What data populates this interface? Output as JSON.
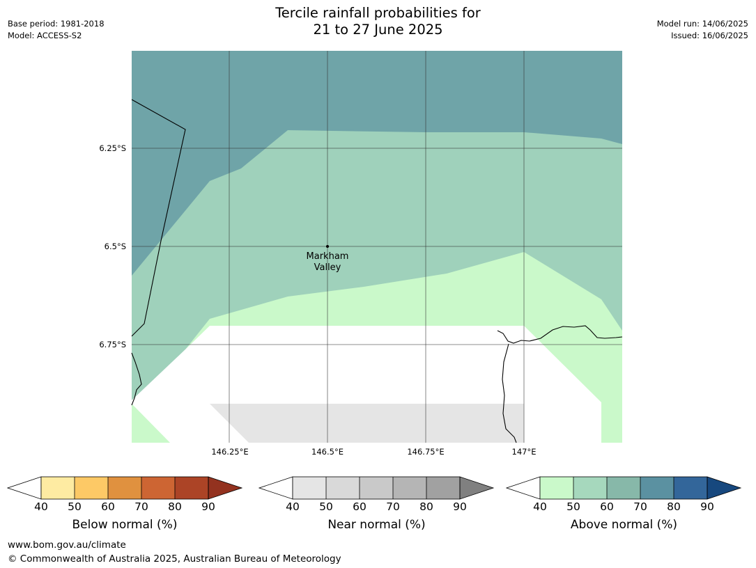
{
  "header": {
    "base_period": "Base period: 1981-2018",
    "model": "Model: ACCESS-S2",
    "model_run": "Model run: 14/06/2025",
    "issued": "Issued: 16/06/2025",
    "title_line1": "Tercile rainfall probabilities for",
    "title_line2": "21 to 27 June 2025"
  },
  "map": {
    "lat_labels": [
      "6.25°S",
      "6.5°S",
      "6.75°S"
    ],
    "lon_labels": [
      "146.25°E",
      "146.5°E",
      "146.75°E",
      "147°E"
    ],
    "place": {
      "name_line1": "Markham",
      "name_line2": "Valley"
    },
    "category_colors": {
      "above_60_70": "#6fa4a8",
      "above_50_60": "#9fd1bb",
      "above_40_50": "#caf9ca",
      "near_40_50": "#e5e5e5",
      "no_signal": "#ffffff"
    }
  },
  "colorbars": [
    {
      "title": "Below normal (%)",
      "ticks": [
        "40",
        "50",
        "60",
        "70",
        "80",
        "90"
      ],
      "colors": [
        "#feeba2",
        "#fdc966",
        "#e0913f",
        "#cd6533",
        "#ac4426",
        "#93321f"
      ]
    },
    {
      "title": "Near normal (%)",
      "ticks": [
        "40",
        "50",
        "60",
        "70",
        "80",
        "90"
      ],
      "colors": [
        "#e5e5e5",
        "#d9d9d9",
        "#c9c9c9",
        "#b5b5b5",
        "#a1a1a1",
        "#808080"
      ]
    },
    {
      "title": "Above normal (%)",
      "ticks": [
        "40",
        "50",
        "60",
        "70",
        "80",
        "90"
      ],
      "colors": [
        "#caf9ca",
        "#a6d8bd",
        "#87b8a9",
        "#5b91a1",
        "#33669a",
        "#17487e"
      ]
    }
  ],
  "footer": {
    "url": "www.bom.gov.au/climate",
    "copyright": "© Commonwealth of Australia 2025, Australian Bureau of Meteorology"
  }
}
